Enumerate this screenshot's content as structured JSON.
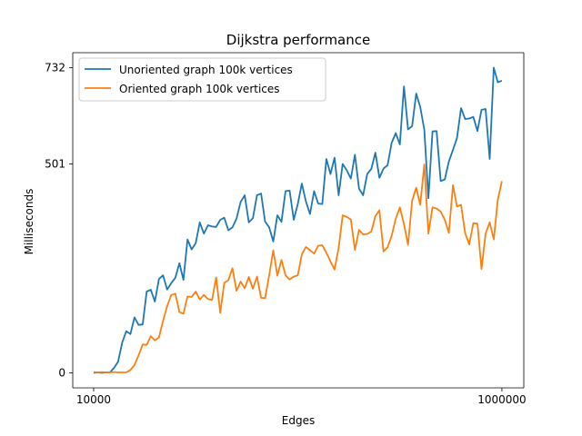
{
  "chart_data": {
    "type": "line",
    "title": "Dijkstra performance",
    "xlabel": "Edges",
    "ylabel": "Milliseconds",
    "x_scale": "log",
    "xlim": [
      7900,
      1280000
    ],
    "ylim": [
      -36,
      768
    ],
    "x_ticks": [
      {
        "value": 10000,
        "label": "10000"
      },
      {
        "value": 1000000,
        "label": "1000000"
      }
    ],
    "y_ticks": [
      {
        "value": 0,
        "label": "0"
      },
      {
        "value": 501,
        "label": "501"
      },
      {
        "value": 732,
        "label": "732"
      }
    ],
    "grid": false,
    "legend_position": "top-left",
    "series": [
      {
        "name": "Unoriented graph 100k vertices",
        "color": "#1f77b4",
        "x": [
          10000,
          10471,
          10965,
          11482,
          12023,
          12589,
          13183,
          13804,
          14454,
          15136,
          15849,
          16596,
          17378,
          18197,
          19055,
          19953,
          20893,
          21878,
          22909,
          23988,
          25119,
          26303,
          27542,
          28840,
          30200,
          31623,
          33113,
          34674,
          36308,
          38019,
          39811,
          41687,
          43652,
          45709,
          47863,
          50119,
          52481,
          54954,
          57544,
          60256,
          63096,
          66069,
          69183,
          72444,
          75858,
          79433,
          83176,
          87096,
          91201,
          95499,
          100000,
          104713,
          109648,
          114815,
          120226,
          125893,
          131826,
          138038,
          144544,
          151356,
          158489,
          165959,
          173780,
          181970,
          190546,
          199526,
          208930,
          218776,
          229087,
          239883,
          251189,
          263027,
          275423,
          288403,
          301995,
          316228,
          331131,
          346737,
          363078,
          380189,
          398107,
          416869,
          436516,
          457088,
          478630,
          501187,
          524807,
          549541,
          575440,
          602560,
          630957,
          660693,
          691831,
          724436,
          758578,
          794328,
          831764,
          870964,
          912011,
          954993,
          1000000
        ],
        "y": [
          0,
          1,
          0,
          1,
          1,
          12,
          27,
          73,
          100,
          93,
          133,
          115,
          116,
          195,
          199,
          171,
          225,
          234,
          200,
          215,
          228,
          263,
          223,
          320,
          296,
          311,
          361,
          334,
          354,
          351,
          350,
          367,
          372,
          342,
          349,
          370,
          410,
          426,
          361,
          371,
          426,
          430,
          363,
          349,
          315,
          378,
          362,
          436,
          437,
          367,
          405,
          454,
          411,
          381,
          436,
          406,
          405,
          513,
          477,
          516,
          426,
          501,
          486,
          466,
          523,
          442,
          426,
          477,
          489,
          528,
          468,
          490,
          498,
          552,
          575,
          548,
          687,
          584,
          592,
          670,
          638,
          583,
          419,
          579,
          580,
          460,
          464,
          507,
          535,
          563,
          635,
          609,
          610,
          614,
          580,
          631,
          633,
          513,
          732,
          697,
          701
        ],
        "label_series": "Unoriented graph 100k vertices"
      },
      {
        "name": "Oriented graph 100k vertices",
        "color": "#ff7f0e",
        "x": [
          10000,
          10471,
          10965,
          11482,
          12023,
          12589,
          13183,
          13804,
          14454,
          15136,
          15849,
          16596,
          17378,
          18197,
          19055,
          19953,
          20893,
          21878,
          22909,
          23988,
          25119,
          26303,
          27542,
          28840,
          30200,
          31623,
          33113,
          34674,
          36308,
          38019,
          39811,
          41687,
          43652,
          45709,
          47863,
          50119,
          52481,
          54954,
          57544,
          60256,
          63096,
          66069,
          69183,
          72444,
          75858,
          79433,
          83176,
          87096,
          91201,
          95499,
          100000,
          104713,
          109648,
          114815,
          120226,
          125893,
          131826,
          138038,
          144544,
          151356,
          158489,
          165959,
          173780,
          181970,
          190546,
          199526,
          208930,
          218776,
          229087,
          239883,
          251189,
          263027,
          275423,
          288403,
          301995,
          316228,
          331131,
          346737,
          363078,
          380189,
          398107,
          416869,
          436516,
          457088,
          478630,
          501187,
          524807,
          549541,
          575440,
          602560,
          630957,
          660693,
          691831,
          724436,
          758578,
          794328,
          831764,
          870964,
          912011,
          954993,
          1000000
        ],
        "y": [
          2,
          1,
          2,
          1,
          1,
          2,
          1,
          1,
          1,
          7,
          19,
          42,
          68,
          67,
          88,
          78,
          85,
          125,
          160,
          187,
          190,
          146,
          142,
          183,
          182,
          195,
          176,
          187,
          177,
          175,
          229,
          144,
          216,
          222,
          251,
          197,
          219,
          203,
          230,
          202,
          231,
          180,
          179,
          234,
          294,
          233,
          271,
          234,
          224,
          231,
          234,
          284,
          302,
          294,
          286,
          305,
          306,
          288,
          267,
          248,
          300,
          378,
          374,
          368,
          295,
          343,
          332,
          333,
          339,
          376,
          390,
          291,
          301,
          329,
          370,
          397,
          357,
          307,
          413,
          444,
          403,
          500,
          334,
          397,
          394,
          387,
          367,
          336,
          450,
          399,
          403,
          335,
          308,
          359,
          358,
          249,
          334,
          361,
          320,
          415,
          460
        ],
        "label_series": "Oriented graph 100k vertices"
      }
    ]
  }
}
